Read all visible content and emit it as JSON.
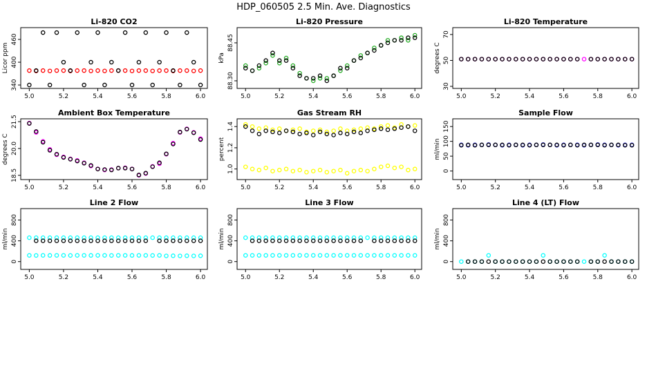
{
  "title": "HDP_060505  2.5 Min. Ave. Diagnostics",
  "chart_data": [
    {
      "type": "scatter",
      "title": "Li-820 CO2",
      "ylabel": "Licor ppm",
      "x": [
        5.0,
        5.04,
        5.08,
        5.12,
        5.16,
        5.2,
        5.24,
        5.28,
        5.32,
        5.36,
        5.4,
        5.44,
        5.48,
        5.52,
        5.56,
        5.6,
        5.64,
        5.68,
        5.72,
        5.76,
        5.8,
        5.84,
        5.88,
        5.92,
        5.96,
        6.0
      ],
      "xlim": [
        4.95,
        6.04
      ],
      "xticks": [
        {
          "value": 5,
          "label": "5.0"
        },
        5.2,
        5.4,
        5.6,
        5.8,
        {
          "value": 6,
          "label": "6.0"
        }
      ],
      "ylim": [
        331,
        491
      ],
      "yticks": [
        340,
        400,
        460
      ],
      "series": [
        {
          "color": "#ff0000",
          "values": [
            378,
            377,
            378,
            377,
            378,
            378,
            377,
            378,
            378,
            377,
            378,
            377,
            378,
            378,
            378,
            377,
            378,
            378,
            377,
            378,
            378,
            377,
            378,
            378,
            377,
            378
          ]
        },
        {
          "color": "#000000",
          "values": [
            340,
            378,
            478,
            340,
            478,
            400,
            378,
            478,
            340,
            400,
            478,
            340,
            400,
            378,
            478,
            340,
            400,
            478,
            340,
            400,
            478,
            378,
            340,
            478,
            400,
            340
          ]
        }
      ]
    },
    {
      "type": "scatter",
      "title": "Li-820 Pressure",
      "ylabel": "kPa",
      "x": [
        5.0,
        5.04,
        5.08,
        5.12,
        5.16,
        5.2,
        5.24,
        5.28,
        5.32,
        5.36,
        5.4,
        5.44,
        5.48,
        5.52,
        5.56,
        5.6,
        5.64,
        5.68,
        5.72,
        5.76,
        5.8,
        5.84,
        5.88,
        5.92,
        5.96,
        6.0
      ],
      "xlim": [
        4.95,
        6.04
      ],
      "xticks": [
        {
          "value": 5,
          "label": "5.0"
        },
        5.2,
        5.4,
        5.6,
        5.8,
        {
          "value": 6,
          "label": "6.0"
        }
      ],
      "ylim": [
        88.27,
        88.51
      ],
      "yticks": [
        {
          "value": 88.3,
          "label": "88.30"
        },
        88.45
      ],
      "series": [
        {
          "color": "#22aa22",
          "values": [
            88.36,
            88.34,
            88.35,
            88.37,
            88.4,
            88.37,
            88.39,
            88.36,
            88.33,
            88.31,
            88.3,
            88.31,
            88.31,
            88.32,
            88.34,
            88.36,
            88.38,
            88.4,
            88.41,
            88.43,
            88.44,
            88.46,
            88.46,
            88.47,
            88.46,
            88.48
          ]
        },
        {
          "color": "#000000",
          "values": [
            88.35,
            88.34,
            88.36,
            88.38,
            88.41,
            88.38,
            88.38,
            88.35,
            88.32,
            88.31,
            88.31,
            88.32,
            88.3,
            88.32,
            88.35,
            88.35,
            88.38,
            88.39,
            88.41,
            88.42,
            88.44,
            88.45,
            88.46,
            88.46,
            88.47,
            88.47
          ]
        }
      ]
    },
    {
      "type": "scatter",
      "title": "Li-820 Temperature",
      "ylabel": "degrees C",
      "x": [
        5.0,
        5.04,
        5.08,
        5.12,
        5.16,
        5.2,
        5.24,
        5.28,
        5.32,
        5.36,
        5.4,
        5.44,
        5.48,
        5.52,
        5.56,
        5.6,
        5.64,
        5.68,
        5.72,
        5.76,
        5.8,
        5.84,
        5.88,
        5.92,
        5.96,
        6.0
      ],
      "xlim": [
        4.95,
        6.04
      ],
      "xticks": [
        {
          "value": 5,
          "label": "5.0"
        },
        5.2,
        5.4,
        5.6,
        5.8,
        {
          "value": 6,
          "label": "6.0"
        }
      ],
      "ylim": [
        28.4,
        75.3
      ],
      "yticks": [
        30,
        50,
        70
      ],
      "series": [
        {
          "color": "#ff00ff",
          "values": [
            51,
            51,
            51,
            51,
            51,
            51,
            51,
            51,
            51,
            51,
            51,
            51,
            51,
            51,
            51,
            51,
            51,
            51,
            51,
            51,
            51,
            51,
            51,
            51,
            51,
            51
          ]
        },
        {
          "color": "#000000",
          "values": [
            51,
            51,
            51,
            51,
            51,
            51,
            51,
            51,
            51,
            51,
            51,
            51,
            51,
            51,
            51,
            51,
            51,
            51,
            null,
            51,
            51,
            51,
            51,
            51,
            51,
            51
          ]
        }
      ]
    },
    {
      "type": "scatter",
      "title": "Ambient Box Temperature",
      "ylabel": "degrees C",
      "x": [
        5.0,
        5.04,
        5.08,
        5.12,
        5.16,
        5.2,
        5.24,
        5.28,
        5.32,
        5.36,
        5.4,
        5.44,
        5.48,
        5.52,
        5.56,
        5.6,
        5.64,
        5.68,
        5.72,
        5.76,
        5.8,
        5.84,
        5.88,
        5.92,
        5.96,
        6.0
      ],
      "xlim": [
        4.95,
        6.04
      ],
      "xticks": [
        {
          "value": 5,
          "label": "5.0"
        },
        5.2,
        5.4,
        5.6,
        5.8,
        {
          "value": 6,
          "label": "6.0"
        }
      ],
      "ylim": [
        18.26,
        21.66
      ],
      "yticks": [
        18.5,
        {
          "value": 20,
          "label": "20.0"
        },
        21.5
      ],
      "series": [
        {
          "color": "#ff00ff",
          "values": [
            21.42,
            20.9,
            20.4,
            19.95,
            19.65,
            19.53,
            19.42,
            19.33,
            19.2,
            19.02,
            18.86,
            18.8,
            18.82,
            18.9,
            18.92,
            18.86,
            18.5,
            18.6,
            19.0,
            19.15,
            19.68,
            20.3,
            20.9,
            21.1,
            20.9,
            20.55
          ]
        },
        {
          "color": "#000000",
          "values": [
            21.4,
            20.95,
            20.35,
            19.9,
            19.68,
            19.5,
            19.4,
            19.3,
            19.18,
            19.05,
            18.85,
            18.82,
            18.8,
            18.9,
            18.9,
            18.85,
            18.52,
            18.62,
            18.98,
            19.2,
            19.7,
            20.25,
            20.92,
            21.08,
            20.88,
            20.5
          ]
        }
      ]
    },
    {
      "type": "scatter",
      "title": "Gas Stream RH",
      "ylabel": "percent",
      "x": [
        5.0,
        5.04,
        5.08,
        5.12,
        5.16,
        5.2,
        5.24,
        5.28,
        5.32,
        5.36,
        5.4,
        5.44,
        5.48,
        5.52,
        5.56,
        5.6,
        5.64,
        5.68,
        5.72,
        5.76,
        5.8,
        5.84,
        5.88,
        5.92,
        5.96,
        6.0
      ],
      "xlim": [
        4.95,
        6.04
      ],
      "xticks": [
        {
          "value": 5,
          "label": "5.0"
        },
        5.2,
        5.4,
        5.6,
        5.8,
        {
          "value": 6,
          "label": "6.0"
        }
      ],
      "ylim": [
        0.9,
        1.473
      ],
      "yticks": [
        {
          "value": 1,
          "label": "1.0"
        },
        1.2,
        1.4
      ],
      "series": [
        {
          "color": "#ffff00",
          "values": [
            1.42,
            1.4,
            1.38,
            1.39,
            1.37,
            1.38,
            1.36,
            1.37,
            1.38,
            1.35,
            1.36,
            1.37,
            1.35,
            1.36,
            1.38,
            1.36,
            1.37,
            1.38,
            1.39,
            1.38,
            1.4,
            1.41,
            1.39,
            1.42,
            1.4,
            1.41
          ]
        },
        {
          "color": "#ffff00",
          "values": [
            1.02,
            1.0,
            0.99,
            1.01,
            0.98,
            0.99,
            1.0,
            0.98,
            0.99,
            0.97,
            0.98,
            0.99,
            0.97,
            0.98,
            0.99,
            0.96,
            0.98,
            0.99,
            0.98,
            1.0,
            1.02,
            1.03,
            1.01,
            1.02,
            0.99,
            1.0
          ]
        },
        {
          "color": "#000000",
          "values": [
            1.4,
            1.36,
            1.33,
            1.36,
            1.35,
            1.34,
            1.36,
            1.35,
            1.33,
            1.34,
            1.32,
            1.35,
            1.33,
            1.32,
            1.34,
            1.33,
            1.35,
            1.34,
            1.36,
            1.37,
            1.38,
            1.37,
            1.38,
            1.39,
            1.4,
            1.36
          ]
        }
      ]
    },
    {
      "type": "scatter",
      "title": "Sample Flow",
      "ylabel": "ml/min",
      "x": [
        5.0,
        5.04,
        5.08,
        5.12,
        5.16,
        5.2,
        5.24,
        5.28,
        5.32,
        5.36,
        5.4,
        5.44,
        5.48,
        5.52,
        5.56,
        5.6,
        5.64,
        5.68,
        5.72,
        5.76,
        5.8,
        5.84,
        5.88,
        5.92,
        5.96,
        6.0
      ],
      "xlim": [
        4.95,
        6.04
      ],
      "xticks": [
        {
          "value": 5,
          "label": "5.0"
        },
        5.2,
        5.4,
        5.6,
        5.8,
        {
          "value": 6,
          "label": "6.0"
        }
      ],
      "ylim": [
        -29,
        176
      ],
      "yticks": [
        0,
        50,
        100,
        150
      ],
      "series": [
        {
          "color": "#0000ff",
          "values": [
            88,
            87,
            88,
            88,
            89,
            88,
            87,
            88,
            88,
            87,
            88,
            88,
            89,
            88,
            87,
            88,
            88,
            88,
            87,
            88,
            89,
            88,
            88,
            87,
            88,
            88
          ]
        },
        {
          "color": "#000000",
          "values": [
            87,
            88,
            87,
            88,
            88,
            88,
            88,
            87,
            88,
            88,
            87,
            88,
            88,
            88,
            88,
            87,
            88,
            87,
            88,
            88,
            88,
            87,
            88,
            88,
            87,
            87
          ]
        }
      ]
    },
    {
      "type": "scatter",
      "title": "Line 2 Flow",
      "ylabel": "ml/min",
      "x": [
        5.0,
        5.04,
        5.08,
        5.12,
        5.16,
        5.2,
        5.24,
        5.28,
        5.32,
        5.36,
        5.4,
        5.44,
        5.48,
        5.52,
        5.56,
        5.6,
        5.64,
        5.68,
        5.72,
        5.76,
        5.8,
        5.84,
        5.88,
        5.92,
        5.96,
        6.0
      ],
      "xlim": [
        4.95,
        6.04
      ],
      "xticks": [
        {
          "value": 5,
          "label": "5.0"
        },
        5.2,
        5.4,
        5.6,
        5.8,
        {
          "value": 6,
          "label": "6.0"
        }
      ],
      "ylim": [
        -150,
        1020
      ],
      "yticks": [
        0,
        400,
        800
      ],
      "series": [
        {
          "color": "#00ffff",
          "values": [
            460,
            460,
            460,
            460,
            460,
            460,
            460,
            460,
            460,
            460,
            460,
            460,
            460,
            460,
            460,
            460,
            460,
            460,
            460,
            460,
            460,
            460,
            460,
            460,
            460,
            460
          ]
        },
        {
          "color": "#00ffff",
          "values": [
            120,
            118,
            120,
            119,
            120,
            120,
            118,
            120,
            120,
            119,
            120,
            120,
            118,
            120,
            120,
            119,
            120,
            120,
            118,
            120,
            110,
            112,
            110,
            112,
            110,
            112
          ]
        },
        {
          "color": "#000000",
          "values": [
            null,
            400,
            400,
            400,
            400,
            400,
            400,
            400,
            400,
            400,
            400,
            400,
            400,
            400,
            400,
            400,
            400,
            400,
            null,
            400,
            400,
            400,
            400,
            400,
            400,
            400
          ]
        }
      ]
    },
    {
      "type": "scatter",
      "title": "Line 3 Flow",
      "ylabel": "ml/min",
      "x": [
        5.0,
        5.04,
        5.08,
        5.12,
        5.16,
        5.2,
        5.24,
        5.28,
        5.32,
        5.36,
        5.4,
        5.44,
        5.48,
        5.52,
        5.56,
        5.6,
        5.64,
        5.68,
        5.72,
        5.76,
        5.8,
        5.84,
        5.88,
        5.92,
        5.96,
        6.0
      ],
      "xlim": [
        4.95,
        6.04
      ],
      "xticks": [
        {
          "value": 5,
          "label": "5.0"
        },
        5.2,
        5.4,
        5.6,
        5.8,
        {
          "value": 6,
          "label": "6.0"
        }
      ],
      "ylim": [
        -150,
        1020
      ],
      "yticks": [
        0,
        400,
        800
      ],
      "series": [
        {
          "color": "#00ffff",
          "values": [
            460,
            460,
            460,
            460,
            460,
            460,
            460,
            460,
            460,
            460,
            460,
            460,
            460,
            460,
            460,
            460,
            460,
            460,
            460,
            460,
            460,
            460,
            460,
            460,
            460,
            460
          ]
        },
        {
          "color": "#00ffff",
          "values": [
            120,
            120,
            120,
            120,
            120,
            120,
            120,
            120,
            120,
            120,
            120,
            120,
            120,
            120,
            120,
            120,
            120,
            120,
            120,
            120,
            120,
            120,
            120,
            120,
            120,
            120
          ]
        },
        {
          "color": "#000000",
          "values": [
            null,
            400,
            400,
            400,
            400,
            400,
            400,
            400,
            400,
            400,
            400,
            400,
            400,
            400,
            400,
            400,
            400,
            400,
            null,
            400,
            400,
            400,
            400,
            400,
            400,
            400
          ]
        }
      ]
    },
    {
      "type": "scatter",
      "title": "Line 4 (LT) Flow",
      "ylabel": "ml/min",
      "x": [
        5.0,
        5.04,
        5.08,
        5.12,
        5.16,
        5.2,
        5.24,
        5.28,
        5.32,
        5.36,
        5.4,
        5.44,
        5.48,
        5.52,
        5.56,
        5.6,
        5.64,
        5.68,
        5.72,
        5.76,
        5.8,
        5.84,
        5.88,
        5.92,
        5.96,
        6.0
      ],
      "xlim": [
        4.95,
        6.04
      ],
      "xticks": [
        {
          "value": 5,
          "label": "5.0"
        },
        5.2,
        5.4,
        5.6,
        5.8,
        {
          "value": 6,
          "label": "6.0"
        }
      ],
      "ylim": [
        -150,
        1020
      ],
      "yticks": [
        0,
        400,
        800
      ],
      "series": [
        {
          "color": "#00ffff",
          "values": [
            0,
            0,
            0,
            0,
            120,
            0,
            0,
            0,
            0,
            0,
            0,
            0,
            120,
            0,
            0,
            0,
            0,
            0,
            0,
            0,
            0,
            120,
            0,
            0,
            0,
            0
          ]
        },
        {
          "color": "#000000",
          "values": [
            null,
            0,
            0,
            0,
            0,
            0,
            0,
            0,
            0,
            0,
            0,
            0,
            0,
            0,
            0,
            0,
            0,
            0,
            null,
            0,
            0,
            0,
            0,
            0,
            0,
            0
          ]
        }
      ]
    }
  ]
}
